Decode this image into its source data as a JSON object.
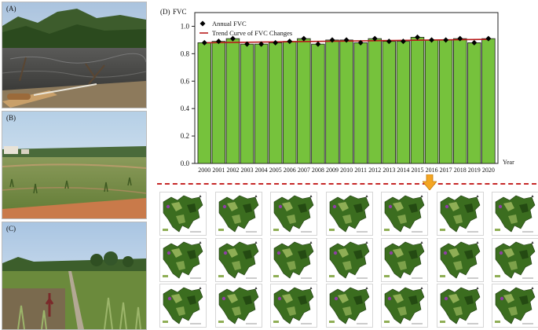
{
  "panels": {
    "a": {
      "label": "(A)"
    },
    "b": {
      "label": "(B)"
    },
    "c": {
      "label": "(C)"
    },
    "d": {
      "label": "(D)"
    }
  },
  "chart_data": {
    "type": "bar",
    "categories": [
      "2000",
      "2001",
      "2002",
      "2003",
      "2004",
      "2005",
      "2006",
      "2007",
      "2008",
      "2009",
      "2010",
      "2011",
      "2012",
      "2013",
      "2014",
      "2015",
      "2016",
      "2017",
      "2018",
      "2019",
      "2020"
    ],
    "series": [
      {
        "name": "Annual FVC",
        "values": [
          0.88,
          0.89,
          0.91,
          0.87,
          0.87,
          0.88,
          0.89,
          0.91,
          0.87,
          0.9,
          0.9,
          0.88,
          0.91,
          0.89,
          0.89,
          0.92,
          0.9,
          0.9,
          0.91,
          0.88,
          0.91
        ]
      }
    ],
    "trend": {
      "name": "Trend Curve of FVC Changes",
      "start": 0.88,
      "end": 0.905
    },
    "ylabel": "FVC",
    "xlabel": "Year",
    "ylim": [
      0.0,
      1.1
    ],
    "yticks": [
      "0.0",
      "0.2",
      "0.4",
      "0.6",
      "0.8",
      "1.0"
    ],
    "legend": "top-left",
    "colors": {
      "bar": "#76c23c",
      "bar_edge": "#1c1c1c",
      "marker": "#000000",
      "trend": "#b71c1c"
    }
  },
  "maps": {
    "count": 21,
    "colors": {
      "forest": "#3b6d1f",
      "dark": "#244a12",
      "light": "#8fae55",
      "water": "#8f3fa3"
    },
    "arrow_color": "#f4a623",
    "divider_color": "#c62828"
  }
}
